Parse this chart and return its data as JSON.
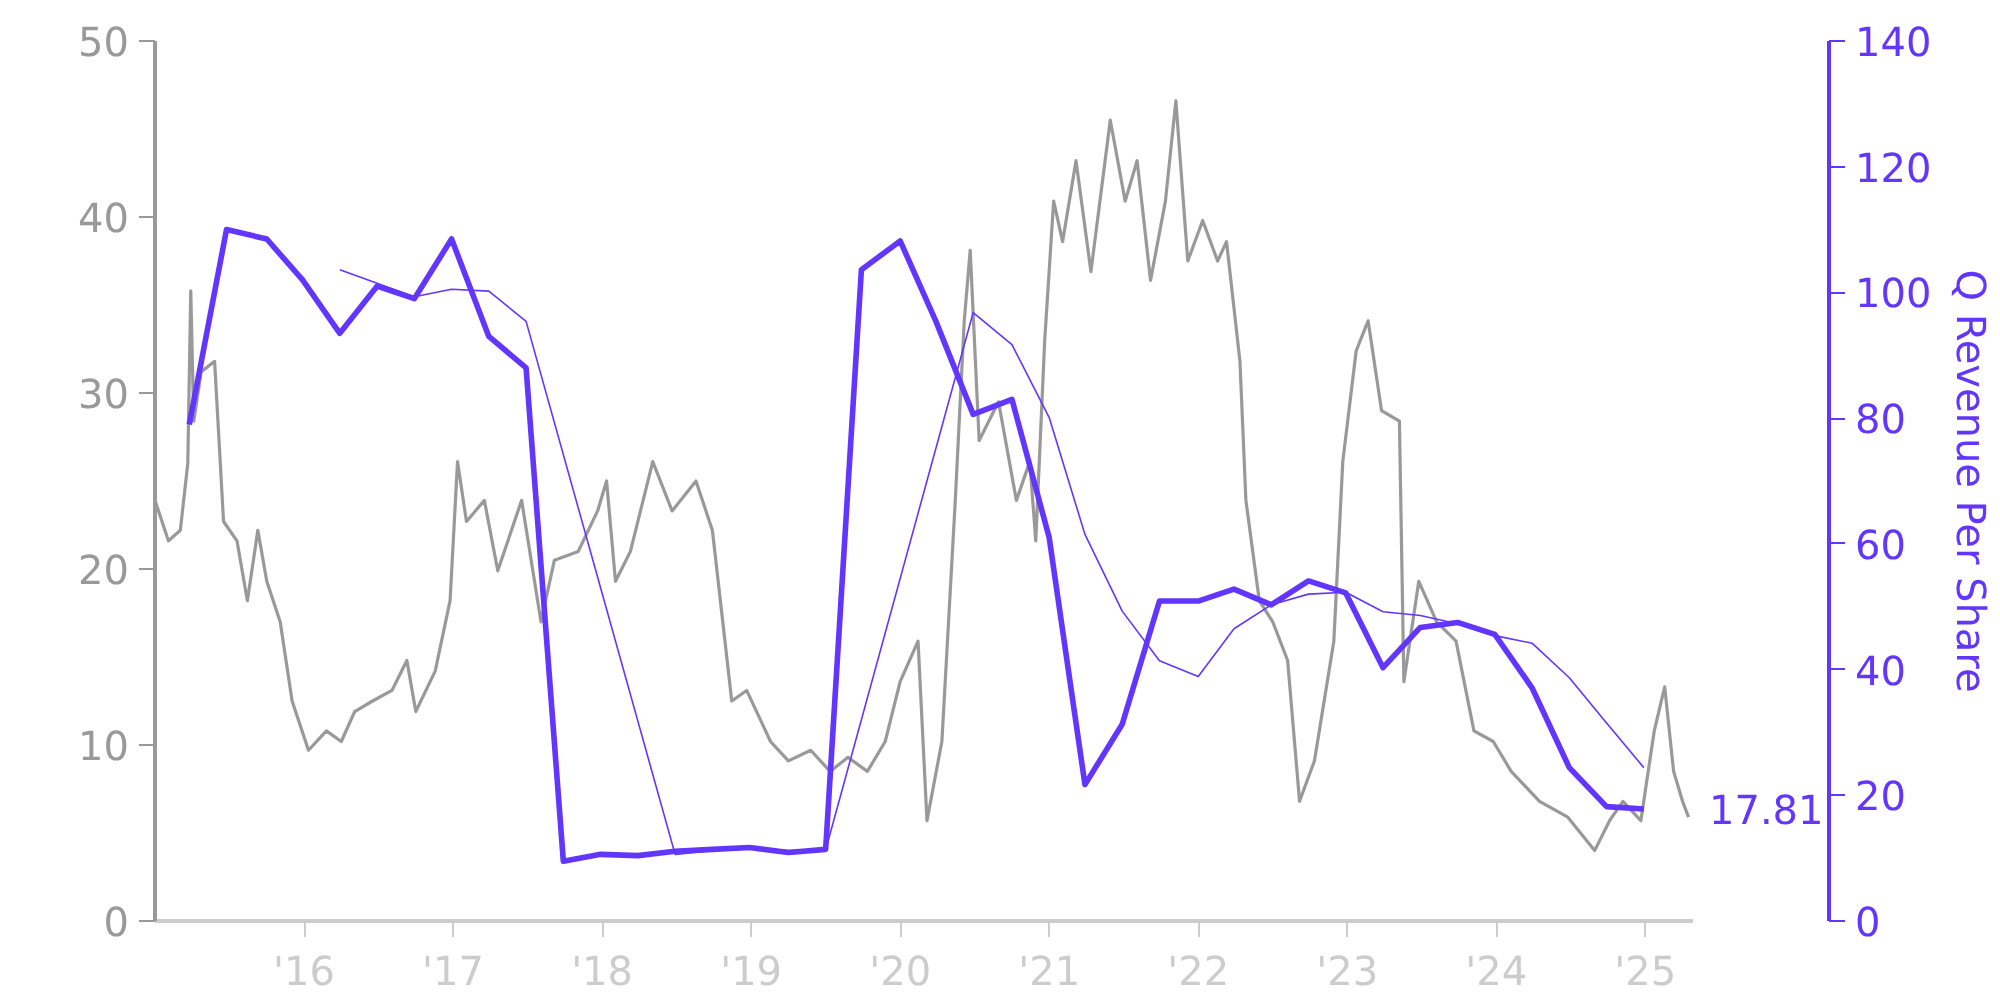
{
  "chart_data": {
    "type": "line",
    "xlim": [
      2015.0,
      2025.32
    ],
    "xticks": [
      {
        "value": 2016,
        "label": "'16"
      },
      {
        "value": 2017,
        "label": "'17"
      },
      {
        "value": 2018,
        "label": "'18"
      },
      {
        "value": 2019,
        "label": "'19"
      },
      {
        "value": 2020,
        "label": "'20"
      },
      {
        "value": 2021,
        "label": "'21"
      },
      {
        "value": 2022,
        "label": "'22"
      },
      {
        "value": 2023,
        "label": "'23"
      },
      {
        "value": 2024,
        "label": "'24"
      },
      {
        "value": 2025,
        "label": "'25"
      }
    ],
    "ylim": [
      0,
      50
    ],
    "yticks": [
      0,
      10,
      20,
      30,
      40,
      50
    ],
    "y2lim": [
      0,
      140
    ],
    "y2ticks": [
      0,
      20,
      40,
      60,
      80,
      100,
      120,
      140
    ],
    "y2label": "Q Revenue Per Share",
    "grid": false,
    "annotations": [
      "17.81"
    ],
    "series": [
      {
        "color": "#999999",
        "x": [
          2015.0,
          2015.09,
          2015.17,
          2015.22,
          2015.24,
          2015.26,
          2015.31,
          2015.4,
          2015.46,
          2015.55,
          2015.62,
          2015.69,
          2015.75,
          2015.84,
          2015.92,
          2016.03,
          2016.15,
          2016.25,
          2016.34,
          2016.46,
          2016.59,
          2016.69,
          2016.75,
          2016.88,
          2016.98,
          2017.03,
          2017.09,
          2017.21,
          2017.3,
          2017.46,
          2017.59,
          2017.68,
          2017.84,
          2017.97,
          2018.03,
          2018.09,
          2018.19,
          2018.34,
          2018.47,
          2018.63,
          2018.74,
          2018.87,
          2018.97,
          2019.13,
          2019.25,
          2019.4,
          2019.53,
          2019.65,
          2019.78,
          2019.9,
          2020.0,
          2020.12,
          2020.18,
          2020.28,
          2020.37,
          2020.43,
          2020.47,
          2020.53,
          2020.66,
          2020.78,
          2020.87,
          2020.91,
          2020.97,
          2021.03,
          2021.09,
          2021.18,
          2021.28,
          2021.41,
          2021.51,
          2021.59,
          2021.68,
          2021.78,
          2021.85,
          2021.93,
          2022.03,
          2022.13,
          2022.19,
          2022.28,
          2022.32,
          2022.41,
          2022.5,
          2022.6,
          2022.68,
          2022.78,
          2022.91,
          2022.97,
          2023.06,
          2023.14,
          2023.23,
          2023.35,
          2023.38,
          2023.48,
          2023.6,
          2023.73,
          2023.85,
          2023.98,
          2024.1,
          2024.29,
          2024.48,
          2024.66,
          2024.76,
          2024.85,
          2024.97,
          2025.06,
          2025.13,
          2025.19,
          2025.25,
          2025.29
        ],
        "values": [
          23.9,
          21.6,
          22.2,
          26,
          35.8,
          28.4,
          31.2,
          31.8,
          22.7,
          21.6,
          18.2,
          22.2,
          19.3,
          17,
          12.5,
          9.7,
          10.8,
          10.2,
          11.9,
          12.5,
          13.1,
          14.8,
          11.9,
          14.2,
          18.2,
          26.1,
          22.7,
          23.9,
          19.9,
          23.9,
          17,
          20.5,
          21,
          23.3,
          25,
          19.3,
          21,
          26.1,
          23.3,
          25,
          22.2,
          12.5,
          13.1,
          10.2,
          9.1,
          9.7,
          8.5,
          9.3,
          8.5,
          10.2,
          13.6,
          15.9,
          5.7,
          10.2,
          23.9,
          34.1,
          38.1,
          27.3,
          29.5,
          23.9,
          26.1,
          21.6,
          33,
          40.9,
          38.6,
          43.2,
          36.9,
          45.5,
          40.9,
          43.2,
          36.4,
          40.9,
          46.6,
          37.5,
          39.8,
          37.5,
          38.6,
          31.8,
          23.9,
          18.2,
          17,
          14.8,
          6.8,
          9.1,
          15.9,
          26.1,
          32.4,
          34.1,
          29,
          28.4,
          13.6,
          19.3,
          17,
          15.9,
          10.8,
          10.2,
          8.5,
          6.8,
          5.9,
          4,
          5.7,
          6.8,
          5.7,
          10.8,
          13.3,
          8.5,
          6.8,
          5.9
        ]
      },
      {
        "color": "#6236ff",
        "axis": "y2",
        "x": [
          2015.23,
          2015.48,
          2015.75,
          2015.99,
          2016.24,
          2016.49,
          2016.74,
          2016.99,
          2017.24,
          2017.49,
          2017.74,
          2017.99,
          2018.24,
          2018.49,
          2018.74,
          2018.99,
          2019.25,
          2019.5,
          2019.74,
          2020.0,
          2020.24,
          2020.49,
          2020.75,
          2021.0,
          2021.24,
          2021.49,
          2021.74,
          2022.0,
          2022.24,
          2022.49,
          2022.74,
          2022.99,
          2023.24,
          2023.49,
          2023.74,
          2023.99,
          2024.24,
          2024.49,
          2024.74,
          2024.99
        ],
        "values": [
          79,
          110,
          108.5,
          102,
          93.5,
          101,
          99,
          108.5,
          93,
          88,
          9.5,
          10.6,
          10.4,
          11.1,
          11.4,
          11.7,
          10.9,
          11.4,
          103.6,
          108.2,
          95.4,
          80.6,
          83,
          61,
          21.7,
          31.3,
          50.9,
          50.9,
          52.8,
          50.3,
          54.1,
          52.2,
          40.3,
          46.7,
          47.5,
          45.6,
          37.1,
          24.4,
          18.2,
          17.81
        ]
      },
      {
        "color": "#6236ff",
        "axis": "y2",
        "x": [
          2016.24,
          2016.74,
          2016.99,
          2017.24,
          2017.49,
          2018.49,
          2018.74,
          2018.99,
          2019.25,
          2019.5,
          2020.49,
          2020.75,
          2021.0,
          2021.24,
          2021.49,
          2021.74,
          2022.0,
          2022.24,
          2022.49,
          2022.74,
          2022.99,
          2023.24,
          2023.49,
          2023.74,
          2023.99,
          2024.24,
          2024.49,
          2024.74,
          2024.99
        ],
        "values": [
          103.6,
          99.3,
          100.5,
          100.2,
          95.4,
          10.6,
          11.2,
          11.5,
          11.2,
          11.3,
          96.8,
          91.7,
          80.1,
          61.5,
          49.3,
          41.4,
          38.9,
          46.5,
          50.3,
          52,
          52.3,
          49.2,
          48.6,
          47.3,
          45.4,
          44.2,
          38.7,
          31.5,
          24.4
        ]
      }
    ]
  }
}
